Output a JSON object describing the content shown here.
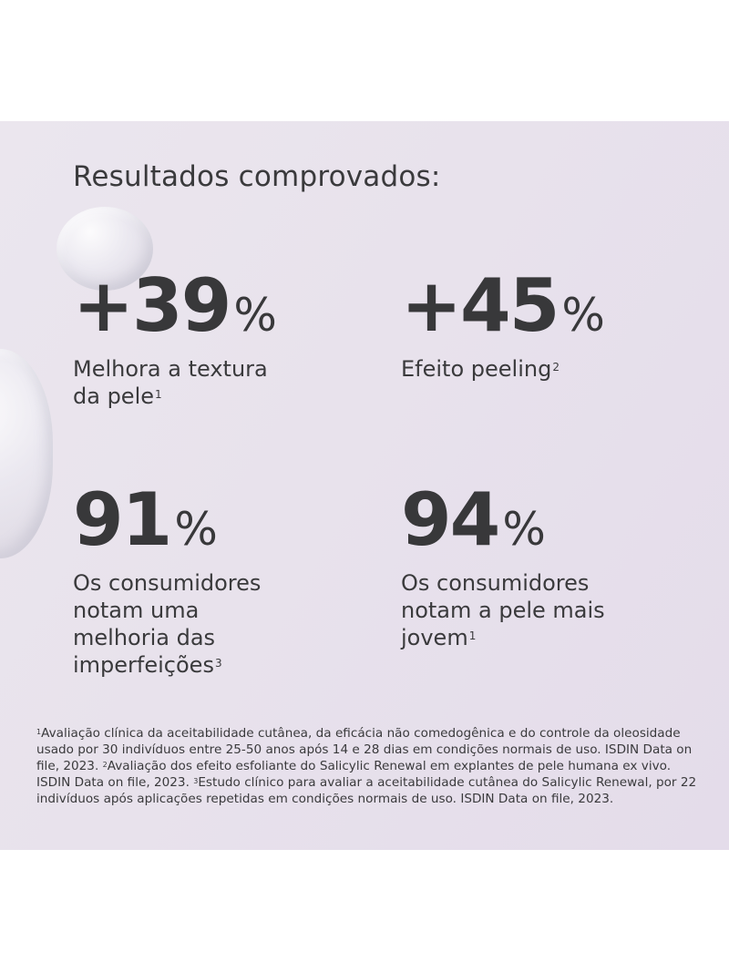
{
  "headline": "Resultados comprovados:",
  "stats": [
    {
      "value": "+39",
      "unit": "%",
      "desc_lines": [
        "Melhora a textura",
        "da pele"
      ],
      "note": "1"
    },
    {
      "value": "+45",
      "unit": "%",
      "desc_lines": [
        "Efeito peeling"
      ],
      "note": "2"
    },
    {
      "value": "91",
      "unit": "%",
      "desc_lines": [
        "Os consumidores",
        "notam uma",
        "melhoria das",
        "imperfeições"
      ],
      "note": "3"
    },
    {
      "value": "94",
      "unit": "%",
      "desc_lines": [
        "Os consumidores",
        "notam a pele mais",
        "jovem"
      ],
      "note": "1"
    }
  ],
  "footnotes": [
    {
      "num": "1",
      "text": "Avaliação clínica da aceitabilidade cutânea, da eficácia não comedogênica e do controle da oleosidade usado por 30 indivíduos entre 25-50 anos após 14 e 28 dias em condições normais de uso. ISDIN Data on file, 2023. "
    },
    {
      "num": "2",
      "text": "Avaliação dos efeito esfoliante do Salicylic Renewal em explantes de pele humana ex vivo. ISDIN Data on file, 2023. "
    },
    {
      "num": "3",
      "text": "Estudo clínico para avaliar a aceitabilidade cutânea do Salicylic Renewal, por 22 indivíduos após aplicações repetidas em condições normais de uso. ISDIN Data on file, 2023."
    }
  ]
}
